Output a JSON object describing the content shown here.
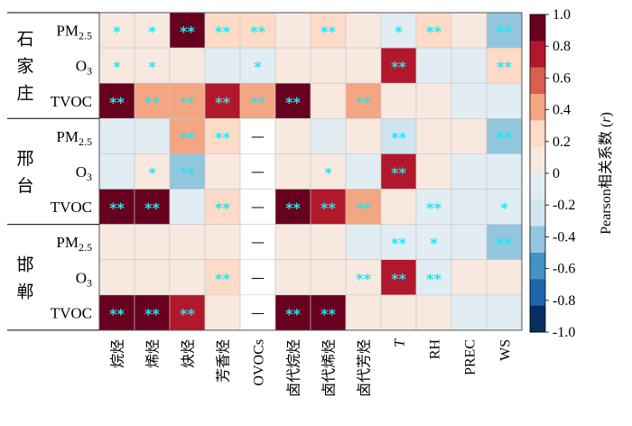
{
  "chart_data": {
    "type": "heatmap",
    "columns": [
      {
        "main": "烷烃"
      },
      {
        "main": "烯烃"
      },
      {
        "main": "炔烃"
      },
      {
        "main": "芳香烃"
      },
      {
        "main": "OVOCs"
      },
      {
        "main": "卤代烷烃"
      },
      {
        "main": "卤代烯烃"
      },
      {
        "main": "卤代芳烃"
      },
      {
        "main": "T",
        "italic": true
      },
      {
        "main": "RH"
      },
      {
        "main": "PREC"
      },
      {
        "main": "WS"
      }
    ],
    "groups": [
      {
        "city": "石家庄",
        "rows": [
          {
            "main": "PM",
            "sub": "2.5"
          },
          {
            "main": "O",
            "sub": "3"
          },
          {
            "main": "TVOC",
            "sub": ""
          }
        ]
      },
      {
        "city": "邢台",
        "rows": [
          {
            "main": "PM",
            "sub": "2.5"
          },
          {
            "main": "O",
            "sub": "3"
          },
          {
            "main": "TVOC",
            "sub": ""
          }
        ]
      },
      {
        "city": "邯郸",
        "rows": [
          {
            "main": "PM",
            "sub": "2.5"
          },
          {
            "main": "O",
            "sub": "3"
          },
          {
            "main": "TVOC",
            "sub": ""
          }
        ]
      }
    ],
    "values": [
      [
        0.15,
        0.15,
        0.85,
        0.3,
        0.3,
        0.15,
        0.3,
        0.15,
        -0.1,
        0.3,
        0.1,
        -0.35
      ],
      [
        0.15,
        0.15,
        0.15,
        -0.1,
        -0.1,
        0.15,
        0.15,
        0.1,
        0.75,
        -0.1,
        -0.1,
        0.3
      ],
      [
        0.85,
        0.5,
        0.5,
        0.7,
        0.5,
        0.85,
        0.15,
        0.5,
        0.1,
        0.1,
        -0.1,
        -0.1
      ],
      [
        -0.1,
        -0.1,
        0.45,
        0.3,
        null,
        0.1,
        -0.1,
        0.1,
        -0.3,
        0.1,
        0.1,
        -0.35
      ],
      [
        -0.1,
        0.1,
        -0.35,
        0.1,
        null,
        0.15,
        0.1,
        -0.1,
        0.75,
        0.1,
        -0.1,
        -0.1
      ],
      [
        0.85,
        0.85,
        -0.1,
        0.3,
        null,
        0.85,
        0.7,
        0.45,
        0.1,
        -0.1,
        -0.1,
        -0.1
      ],
      [
        0.1,
        0.1,
        0.1,
        0.1,
        null,
        0.1,
        0.1,
        -0.1,
        -0.1,
        -0.1,
        -0.1,
        -0.35
      ],
      [
        0.15,
        0.15,
        0.15,
        0.3,
        null,
        0.1,
        0.1,
        0.1,
        0.75,
        -0.1,
        0.1,
        0.1
      ],
      [
        0.85,
        0.85,
        0.75,
        0.1,
        null,
        0.85,
        0.85,
        0.1,
        0.1,
        0.1,
        -0.1,
        -0.1
      ]
    ],
    "stars": [
      [
        "*",
        "*",
        "**",
        "**",
        "**",
        "",
        "**",
        "",
        "*",
        "**",
        "",
        "**"
      ],
      [
        "*",
        "*",
        "",
        "",
        "*",
        "",
        "",
        "",
        "**",
        "",
        "",
        "**"
      ],
      [
        "**",
        "**",
        "**",
        "**",
        "**",
        "**",
        "",
        "**",
        "",
        "",
        "",
        ""
      ],
      [
        "",
        "",
        "**",
        "**",
        "",
        "",
        "",
        "",
        "**",
        "",
        "",
        "**"
      ],
      [
        "",
        "*",
        "**",
        "",
        "",
        "",
        "*",
        "",
        "**",
        "",
        "",
        ""
      ],
      [
        "**",
        "**",
        "",
        "**",
        "",
        "**",
        "**",
        "**",
        "",
        "**",
        "",
        "*"
      ],
      [
        "",
        "",
        "",
        "",
        "",
        "",
        "",
        "",
        "**",
        "*",
        "",
        "**"
      ],
      [
        "",
        "",
        "",
        "**",
        "",
        "",
        "",
        "**",
        "**",
        "**",
        "",
        ""
      ],
      [
        "**",
        "**",
        "**",
        "",
        "",
        "**",
        "**",
        "",
        "",
        "",
        "",
        ""
      ]
    ],
    "missing_symbol": "—",
    "colorbar": {
      "title": "Pearson相关系数 (r)",
      "title_text": "Pearson相关系数",
      "title_var": "r",
      "vmin": -1.0,
      "vmax": 1.0,
      "ticks": [
        "1.0",
        "0.8",
        "0.6",
        "0.4",
        "0.2",
        "0",
        "-0.2",
        "-0.4",
        "-0.6",
        "-0.8",
        "-1.0"
      ],
      "colors_top_to_bottom": [
        "#67001f",
        "#b2182b",
        "#d6604d",
        "#f4a582",
        "#fddbc7",
        "#f7e8e0",
        "#e1ecf3",
        "#d1e5f0",
        "#92c5de",
        "#4393c3",
        "#2166ac",
        "#053061"
      ]
    }
  }
}
